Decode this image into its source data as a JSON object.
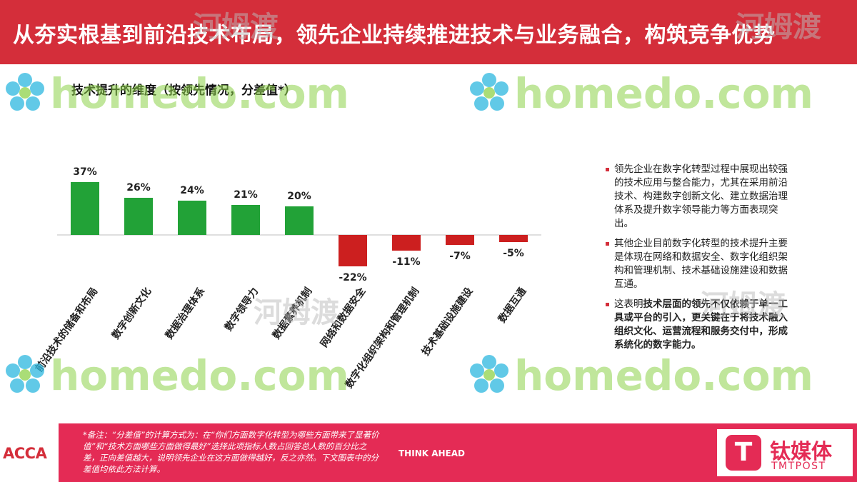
{
  "header": {
    "title": "从夯实根基到前沿技术布局，领先企业持续推进技术与业务融合，构筑竞争优势"
  },
  "chart_data": {
    "type": "bar",
    "title": "技术提升的维度（按领先情况，分差值*）",
    "categories": [
      "前沿技术的储备和布局",
      "数字创新文化",
      "数据治理体系",
      "数字领导力",
      "数据素养机制",
      "网络和数据安全",
      "数字化组织架构和管理机制",
      "技术基础设施建设",
      "数据互通"
    ],
    "values": [
      37,
      26,
      24,
      21,
      20,
      -22,
      -11,
      -7,
      -5
    ],
    "data_labels": [
      "37%",
      "26%",
      "24%",
      "21%",
      "20%",
      "-22%",
      "-11%",
      "-7%",
      "-5%"
    ],
    "positive_color": "#22a237",
    "negative_color": "#cc1f1f",
    "ylim": [
      -30,
      40
    ],
    "grid": false,
    "legend": "none"
  },
  "bullets": [
    {
      "parts": [
        {
          "text": "领先企业在数字化转型过程中展现出较强的技术应用与整合能力，尤其在采用前沿技术、构建数字创新文化、建立数据治理体系及提升数字领导能力等方面表现突出。",
          "bold": false
        }
      ]
    },
    {
      "parts": [
        {
          "text": "其他企业目前数字化转型的技术提升主要是体现在网络和数据安全、数字化组织架构和管理机制、技术基础设施建设和数据互通。",
          "bold": false
        }
      ]
    },
    {
      "parts": [
        {
          "text": "这表明",
          "bold": false
        },
        {
          "text": "技术层面的领先不仅依赖于单一工具或平台的引入，更关键在于将技术融入组织文化、运营流程和服务交付中，形成系统化的数字能力。",
          "bold": true
        }
      ]
    }
  ],
  "footer": {
    "acca": "ACCA",
    "think_ahead": "THINK AHEAD",
    "note": "*备注：“分差值”的计算方式为：在“你们方面数字化转型为哪些方面带来了显著价值”和“技术方面哪些方面做得最好”选择此项指标人数占回答总人数的百分比之差，正向差值越大，说明领先企业在这方面做得越好，反之亦然。下文图表中的分差值均依此方法计算。",
    "tmt_cn": "钛媒体",
    "tmt_en": "TMTPOST",
    "tmt_glyph": "T"
  },
  "watermarks": {
    "text": "homedo.com",
    "cn": "河姆渡",
    "color": "#8ed24a"
  }
}
